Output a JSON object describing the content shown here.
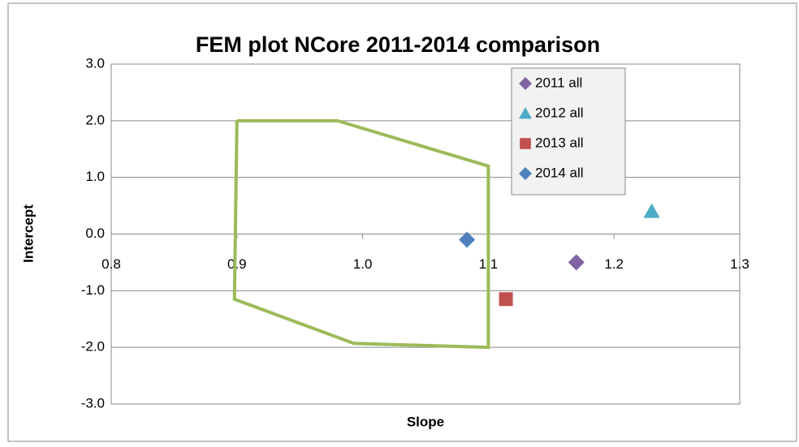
{
  "chart_data": {
    "type": "scatter",
    "title": "FEM plot NCore 2011-2014 comparison",
    "x_label": "Slope",
    "y_label": "Intercept",
    "xlim": [
      0.8,
      1.3
    ],
    "xticks": [
      0.8,
      0.9,
      {
        "value": 1.0,
        "label": "1.0"
      },
      1.1,
      1.2,
      1.3
    ],
    "ylim": [
      -3,
      3
    ],
    "yticks": [
      {
        "value": -3,
        "label": "-3.0"
      },
      {
        "value": -2,
        "label": "-2.0"
      },
      {
        "value": -1,
        "label": "-1.0"
      },
      {
        "value": 0,
        "label": "0.0"
      },
      {
        "value": 1,
        "label": "1.0"
      },
      {
        "value": 2,
        "label": "2.0"
      },
      {
        "value": 3,
        "label": "3.0"
      }
    ],
    "grid": true,
    "legend": "top-right",
    "series": [
      {
        "name": "2011 all",
        "color": "#8064a2",
        "marker": "diamond",
        "x": [
          1.17
        ],
        "values": [
          -0.5
        ]
      },
      {
        "name": "2012 all",
        "color": "#4bacc6",
        "marker": "triangle",
        "x": [
          1.23
        ],
        "values": [
          0.4
        ]
      },
      {
        "name": "2013 all",
        "color": "#c0504d",
        "marker": "square",
        "x": [
          1.114
        ],
        "values": [
          -1.15
        ]
      },
      {
        "name": "2014 all",
        "color": "#4f81bd",
        "marker": "diamond",
        "x": [
          1.083
        ],
        "values": [
          -0.1
        ]
      }
    ],
    "polygon": {
      "color": "#9bbb59",
      "x": [
        0.9,
        0.98,
        1.1,
        1.1,
        0.993,
        0.898,
        0.9
      ],
      "values": [
        2.0,
        2.0,
        1.2,
        -2.0,
        -1.93,
        -1.15,
        2.0
      ]
    }
  }
}
